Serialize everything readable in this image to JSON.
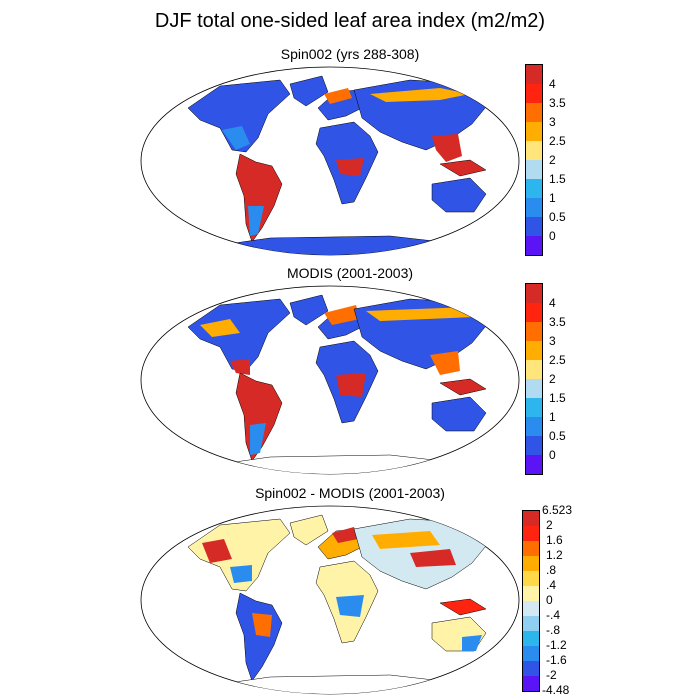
{
  "figure": {
    "title": "DJF total one-sided leaf area index (m2/m2)"
  },
  "panels": [
    {
      "title": "Spin002 (yrs 288-308)",
      "colorbar": {
        "labels": [
          "4",
          "3.5",
          "3",
          "2.5",
          "2",
          "1.5",
          "1",
          "0.5",
          "0"
        ],
        "colors": [
          "#d62a26",
          "#ff2410",
          "#fe6e00",
          "#ffad00",
          "#ffe57c",
          "#b0dbf0",
          "#2db6ee",
          "#2b8cf0",
          "#3054e6",
          "#5a14f5"
        ]
      }
    },
    {
      "title": "MODIS (2001-2003)",
      "colorbar": {
        "labels": [
          "4",
          "3.5",
          "3",
          "2.5",
          "2",
          "1.5",
          "1",
          "0.5",
          "0"
        ],
        "colors": [
          "#d62a26",
          "#ff2410",
          "#fe6e00",
          "#ffad00",
          "#ffe57c",
          "#b0dbf0",
          "#2db6ee",
          "#2b8cf0",
          "#3054e6",
          "#5a14f5"
        ]
      }
    },
    {
      "title": "Spin002 - MODIS (2001-2003)",
      "colorbar": {
        "labels": [
          "6.523",
          "2",
          "1.6",
          "1.2",
          ".8",
          ".4",
          "0",
          "-.4",
          "-.8",
          "-1.2",
          "-1.6",
          "-2",
          "-4.48"
        ],
        "colors": [
          "#d62a26",
          "#ff2410",
          "#fe6e00",
          "#ffad00",
          "#ffd84a",
          "#fff3a8",
          "#d2e9f2",
          "#8fd0f2",
          "#2db6ee",
          "#2b8cf0",
          "#3054e6",
          "#5a14f5"
        ]
      }
    }
  ]
}
